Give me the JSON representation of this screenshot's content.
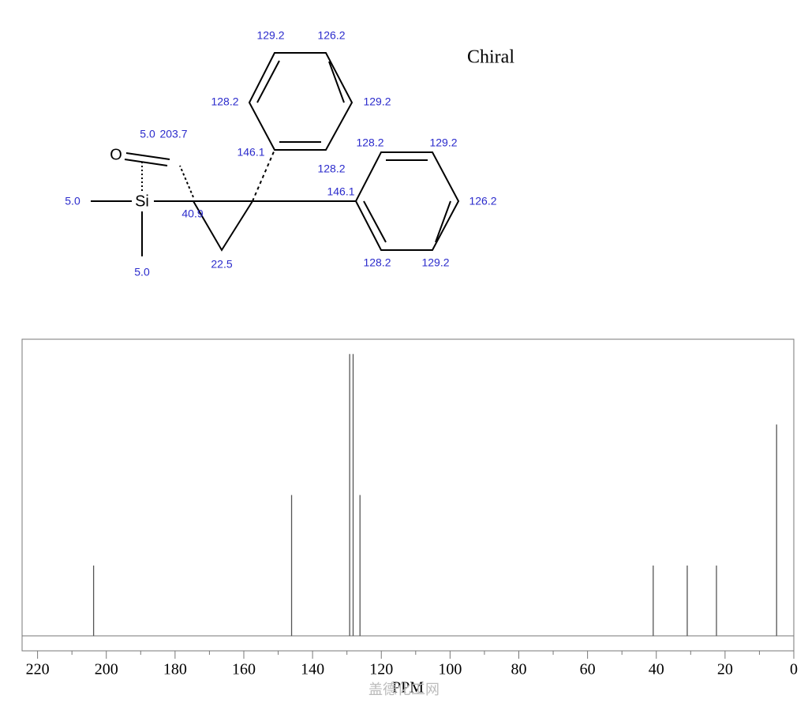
{
  "structure": {
    "annotation": "Chiral",
    "atoms": [
      "O",
      "Si"
    ],
    "shift_labels": [
      "129.2",
      "126.2",
      "128.2",
      "129.2",
      "146.1",
      "128.2",
      "128.2",
      "129.2",
      "146.1",
      "126.2",
      "128.2",
      "129.2",
      "5.0",
      "203.7",
      "5.0",
      "40.9",
      "22.5",
      "5.0"
    ]
  },
  "chart_data": {
    "type": "stem",
    "x_label": "PPM",
    "watermark": "盖德化工网",
    "x": [
      203.7,
      146.1,
      129.2,
      128.2,
      126.2,
      40.9,
      31.0,
      22.5,
      5.0
    ],
    "values": [
      1,
      2,
      4,
      4,
      2,
      1,
      1,
      1,
      3
    ],
    "color": "#555555",
    "xlim": [
      224.5,
      0
    ],
    "ylim": [
      -0.21,
      4.21
    ],
    "xticks": [
      220,
      200,
      180,
      160,
      140,
      120,
      100,
      80,
      60,
      40,
      20,
      0
    ],
    "xminorticks": [
      210,
      190,
      170,
      150,
      130,
      110,
      90,
      70,
      50,
      30,
      10
    ]
  }
}
